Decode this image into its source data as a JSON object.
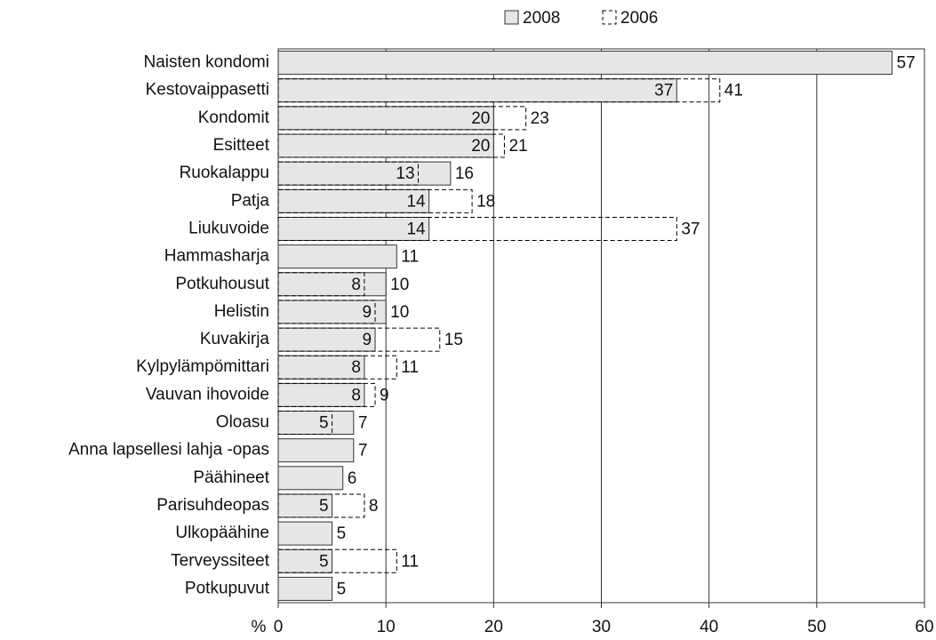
{
  "chart_data": {
    "type": "bar",
    "orientation": "horizontal",
    "x_label": "%",
    "categories": [
      "Naisten kondomi",
      "Kestovaippasetti",
      "Kondomit",
      "Esitteet",
      "Ruokalappu",
      "Patja",
      "Liukuvoide",
      "Hammasharja",
      "Potkuhousut",
      "Helistin",
      "Kuvakirja",
      "Kylpylämpömittari",
      "Vauvan ihovoide",
      "Oloasu",
      "Anna lapsellesi lahja -opas",
      "Päähineet",
      "Parisuhdeopas",
      "Ulkopäähine",
      "Terveyssiteet",
      "Potkupuvut"
    ],
    "series": [
      {
        "name": "2008",
        "color": "#e6e6e6",
        "style": "solid",
        "values": [
          57,
          37,
          20,
          20,
          16,
          14,
          14,
          11,
          10,
          10,
          9,
          8,
          8,
          7,
          7,
          6,
          5,
          5,
          5,
          5
        ]
      },
      {
        "name": "2006",
        "color": "#000000",
        "style": "dashed",
        "values": [
          null,
          41,
          23,
          21,
          13,
          18,
          37,
          null,
          8,
          9,
          15,
          11,
          9,
          5,
          null,
          null,
          8,
          null,
          11,
          null
        ]
      }
    ],
    "xlim": [
      0,
      60
    ],
    "xticks": [
      0,
      10,
      20,
      30,
      40,
      50,
      60
    ],
    "grid": true
  }
}
